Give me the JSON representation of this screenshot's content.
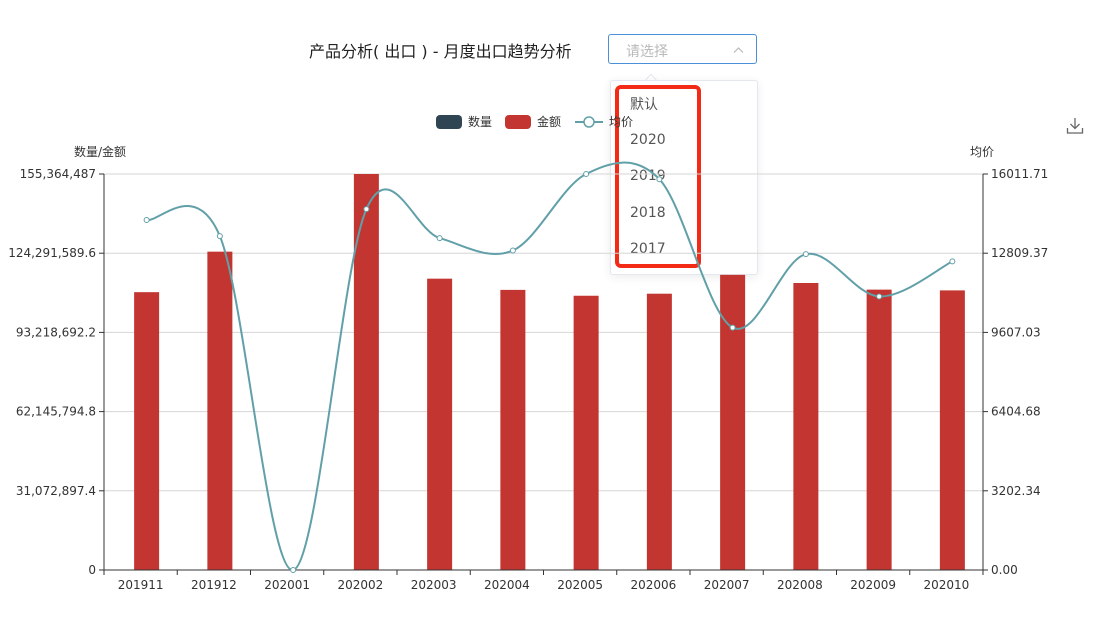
{
  "header": {
    "title": "产品分析( 出口 ) - 月度出口趋势分析"
  },
  "select": {
    "placeholder": "请选择",
    "options": [
      "默认",
      "2020",
      "2019",
      "2018",
      "2017"
    ]
  },
  "toolbox": {
    "download_icon": "download-icon"
  },
  "colors": {
    "count": "#2f4554",
    "amount": "#c23531",
    "avg": "#61a0a8",
    "accent": "#4a90d9",
    "highlight": "#f22a16"
  },
  "chart_data": {
    "type": "bar",
    "legend": [
      "数量",
      "金额",
      "均价"
    ],
    "legend_position": "top-center",
    "categories": [
      "201911",
      "201912",
      "202001",
      "202002",
      "202003",
      "202004",
      "202005",
      "202006",
      "202007",
      "202008",
      "202009",
      "202010"
    ],
    "y_left": {
      "label": "数量/金额",
      "min": 0,
      "max": 155364487,
      "ticks": [
        "0",
        "31,072,897.4",
        "62,145,794.8",
        "93,218,692.2",
        "124,291,589.6",
        "155,364,487"
      ]
    },
    "y_right": {
      "label": "均价",
      "min": 0,
      "max": 16011.71,
      "ticks": [
        "0.00",
        "3202.34",
        "6404.68",
        "9607.03",
        "12809.37",
        "16011.71"
      ]
    },
    "grid": true,
    "series": [
      {
        "name": "数量",
        "type": "bar",
        "axis": "left",
        "values": [
          0,
          0,
          0,
          0,
          0,
          0,
          0,
          0,
          0,
          0,
          0,
          0
        ]
      },
      {
        "name": "金额",
        "type": "bar",
        "axis": "left",
        "values": [
          109000000,
          124900000,
          0,
          155364487,
          114300000,
          109900000,
          107600000,
          108400000,
          115800000,
          112600000,
          110000000,
          109700000
        ]
      },
      {
        "name": "均价",
        "type": "line",
        "axis": "right",
        "smooth": true,
        "values": [
          14150,
          13500,
          0,
          14590,
          13420,
          12920,
          16011.71,
          15800,
          9800,
          12770,
          11060,
          12480
        ]
      }
    ]
  }
}
